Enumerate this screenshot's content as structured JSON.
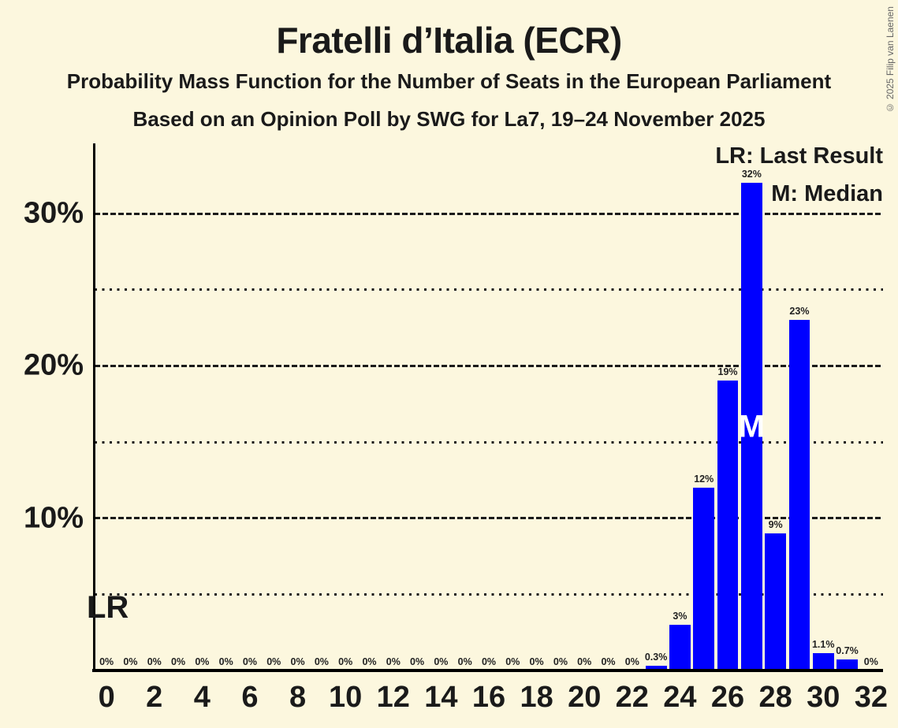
{
  "copyright": "© 2025 Filip van Laenen",
  "legend": {
    "last_result": "LR: Last Result",
    "median": "M: Median"
  },
  "annotations": {
    "last_result_marker": "LR",
    "median_marker": "M"
  },
  "colors": {
    "background": "#FCF7DE",
    "bar": "#0000FF",
    "text": "#1A1A1A",
    "grid": "#1A1A1A",
    "median_marker_text": "#FFFFFF",
    "copyright_text": "#666666"
  },
  "chart_data": {
    "type": "bar",
    "title": "Fratelli d’Italia (ECR)",
    "subtitle": "Probability Mass Function for the Number of Seats in the European Parliament",
    "source_line": "Based on an Opinion Poll by SWG for La7, 19–24 November 2025",
    "seats": [
      0,
      1,
      2,
      3,
      4,
      5,
      6,
      7,
      8,
      9,
      10,
      11,
      12,
      13,
      14,
      15,
      16,
      17,
      18,
      19,
      20,
      21,
      22,
      23,
      24,
      25,
      26,
      27,
      28,
      29,
      30,
      31,
      32
    ],
    "values": [
      0,
      0,
      0,
      0,
      0,
      0,
      0,
      0,
      0,
      0,
      0,
      0,
      0,
      0,
      0,
      0,
      0,
      0,
      0,
      0,
      0,
      0,
      0,
      0.3,
      3,
      12,
      19,
      32,
      9,
      23,
      1.1,
      0.7,
      0
    ],
    "bar_labels": [
      "0%",
      "0%",
      "0%",
      "0%",
      "0%",
      "0%",
      "0%",
      "0%",
      "0%",
      "0%",
      "0%",
      "0%",
      "0%",
      "0%",
      "0%",
      "0%",
      "0%",
      "0%",
      "0%",
      "0%",
      "0%",
      "0%",
      "0%",
      "0.3%",
      "3%",
      "12%",
      "19%",
      "32%",
      "9%",
      "23%",
      "1.1%",
      "0.7%",
      "0%"
    ],
    "x_tick_seats": [
      0,
      2,
      4,
      6,
      8,
      10,
      12,
      14,
      16,
      18,
      20,
      22,
      24,
      26,
      28,
      30,
      32
    ],
    "x_tick_labels": [
      "0",
      "2",
      "4",
      "6",
      "8",
      "10",
      "12",
      "14",
      "16",
      "18",
      "20",
      "22",
      "24",
      "26",
      "28",
      "30",
      "32"
    ],
    "y_major_ticks": [
      10,
      20,
      30
    ],
    "y_major_tick_labels": [
      "10%",
      "20%",
      "30%"
    ],
    "y_minor_ticks": [
      5,
      15,
      25
    ],
    "ylim": [
      0,
      34.6
    ],
    "median_seat": 27,
    "median_value": 32,
    "grid": true,
    "legend_position": "top-right"
  }
}
